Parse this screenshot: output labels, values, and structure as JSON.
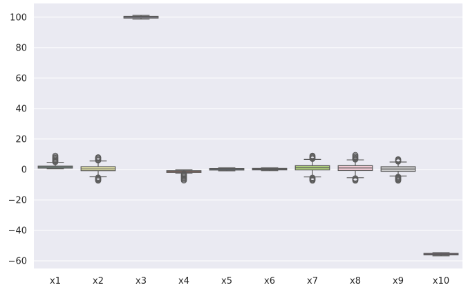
{
  "chart_data": {
    "type": "boxplot",
    "title": "",
    "xlabel": "",
    "ylabel": "",
    "ylim": [
      -65,
      109
    ],
    "yticks": [
      100,
      80,
      60,
      40,
      20,
      0,
      -20,
      -40,
      -60
    ],
    "ytick_labels": [
      "100",
      "80",
      "60",
      "40",
      "20",
      "0",
      "−20",
      "−40",
      "−60"
    ],
    "grid": true,
    "background_color": "#eaeaf2",
    "grid_color": "#ffffff",
    "outline_color": "#5a5a5a",
    "boxes": [
      {
        "label": "x1",
        "color": "#8fbfb3",
        "whisker_low": 0.5,
        "q1": 0.9,
        "median": 1.6,
        "q3": 2.2,
        "whisker_high": 4.7,
        "outliers": [
          4.9,
          5.3,
          5.8,
          6.4,
          7.0,
          7.6,
          8.2,
          9.0
        ]
      },
      {
        "label": "x2",
        "color": "#f6f5b5",
        "whisker_low": -4.8,
        "q1": -0.8,
        "median": 0.4,
        "q3": 1.8,
        "whisker_high": 5.6,
        "outliers": [
          -5.3,
          -5.8,
          -6.3,
          -6.8,
          -7.3,
          5.9,
          6.4,
          7.0,
          7.5,
          8.0
        ]
      },
      {
        "label": "x3",
        "color": "#b9b5d4",
        "whisker_low": 98.7,
        "q1": 99.4,
        "median": 100.1,
        "q3": 100.6,
        "whisker_high": 101.2,
        "outliers": []
      },
      {
        "label": "x4",
        "color": "#e5806e",
        "whisker_low": -2.4,
        "q1": -2.0,
        "median": -1.3,
        "q3": -0.8,
        "whisker_high": -0.2,
        "outliers": [
          -3.0,
          -3.6,
          -4.2,
          -4.8,
          -5.4,
          -6.0,
          -6.6,
          -7.2
        ]
      },
      {
        "label": "x5",
        "color": "#7fa4c6",
        "whisker_low": -0.9,
        "q1": -0.4,
        "median": 0.1,
        "q3": 0.6,
        "whisker_high": 1.1,
        "outliers": []
      },
      {
        "label": "x6",
        "color": "#f0a460",
        "whisker_low": -0.8,
        "q1": -0.3,
        "median": 0.2,
        "q3": 0.7,
        "whisker_high": 1.1,
        "outliers": []
      },
      {
        "label": "x7",
        "color": "#b0d07c",
        "whisker_low": -4.9,
        "q1": -0.3,
        "median": 1.1,
        "q3": 2.5,
        "whisker_high": 6.6,
        "outliers": [
          -5.4,
          -5.9,
          -6.4,
          -6.9,
          -7.3,
          7.0,
          7.5,
          8.0,
          8.5,
          9.0
        ]
      },
      {
        "label": "x8",
        "color": "#f4ccd6",
        "whisker_low": -5.4,
        "q1": -0.7,
        "median": 1.0,
        "q3": 2.5,
        "whisker_high": 6.3,
        "outliers": [
          -5.8,
          -6.3,
          -6.8,
          -7.3,
          6.6,
          7.1,
          7.6,
          8.2,
          8.8,
          9.5
        ]
      },
      {
        "label": "x9",
        "color": "#cfcfcf",
        "whisker_low": -4.3,
        "q1": -1.2,
        "median": 0.3,
        "q3": 1.8,
        "whisker_high": 4.9,
        "outliers": [
          -4.8,
          -5.3,
          -5.8,
          -6.3,
          -6.8,
          -7.3,
          5.2,
          5.7,
          6.2,
          6.7
        ]
      },
      {
        "label": "x10",
        "color": "#b47aa9",
        "whisker_low": -56.7,
        "q1": -56.1,
        "median": -55.6,
        "q3": -55.1,
        "whisker_high": -54.6,
        "outliers": []
      }
    ]
  }
}
